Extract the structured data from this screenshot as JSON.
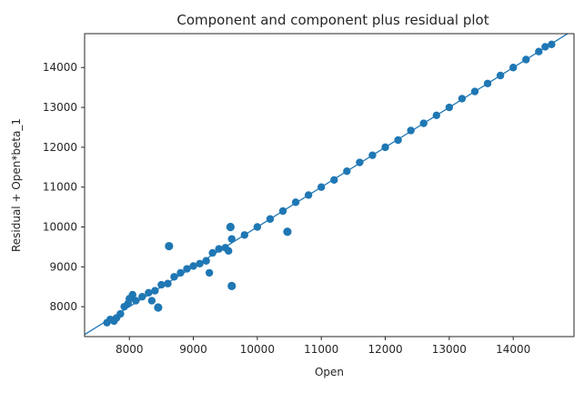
{
  "chart_data": {
    "type": "scatter",
    "title": "Component and component plus residual plot",
    "xlabel": "Open",
    "ylabel": "Residual + Open*beta_1",
    "xlim": [
      7300,
      14950
    ],
    "ylim": [
      7250,
      14850
    ],
    "xticks": [
      8000,
      9000,
      10000,
      11000,
      12000,
      13000,
      14000
    ],
    "yticks": [
      8000,
      9000,
      10000,
      11000,
      12000,
      13000,
      14000
    ],
    "grid": false,
    "marker_color": "#1f77b4",
    "fit_line": {
      "slope": 1,
      "intercept": 0,
      "color": "#1f77b4"
    },
    "series": [
      {
        "points": [
          [
            7650,
            7600
          ],
          [
            7700,
            7680
          ],
          [
            7760,
            7640
          ],
          [
            7800,
            7720
          ],
          [
            7860,
            7820
          ],
          [
            7920,
            8000
          ],
          [
            7980,
            8080
          ],
          [
            8000,
            8200
          ],
          [
            8050,
            8300
          ],
          [
            8100,
            8150
          ],
          [
            8200,
            8250
          ],
          [
            8300,
            8350
          ],
          [
            8350,
            8150
          ],
          [
            8400,
            8400
          ],
          [
            8450,
            7980
          ],
          [
            8500,
            8550
          ],
          [
            8600,
            8580
          ],
          [
            8700,
            8750
          ],
          [
            8800,
            8850
          ],
          [
            8900,
            8950
          ],
          [
            9000,
            9020
          ],
          [
            9100,
            9080
          ],
          [
            9200,
            9150
          ],
          [
            9250,
            8850
          ],
          [
            9300,
            9350
          ],
          [
            9400,
            9450
          ],
          [
            9500,
            9480
          ],
          [
            9550,
            9400
          ],
          [
            9600,
            9700
          ],
          [
            9800,
            9800
          ],
          [
            10000,
            10000
          ],
          [
            10200,
            10200
          ],
          [
            10400,
            10400
          ],
          [
            10600,
            10620
          ],
          [
            10800,
            10800
          ],
          [
            11000,
            11000
          ],
          [
            11200,
            11180
          ],
          [
            11400,
            11400
          ],
          [
            11600,
            11620
          ],
          [
            11800,
            11800
          ],
          [
            12000,
            12000
          ],
          [
            12200,
            12180
          ],
          [
            12400,
            12420
          ],
          [
            12600,
            12600
          ],
          [
            12800,
            12800
          ],
          [
            13000,
            13000
          ],
          [
            13200,
            13220
          ],
          [
            13400,
            13400
          ],
          [
            13600,
            13600
          ],
          [
            13800,
            13800
          ],
          [
            14000,
            14000
          ],
          [
            14200,
            14200
          ],
          [
            14400,
            14400
          ],
          [
            14500,
            14520
          ],
          [
            14600,
            14580
          ]
        ]
      }
    ],
    "outliers": [
      [
        8620,
        9520
      ],
      [
        9580,
        10000
      ],
      [
        9600,
        8520
      ],
      [
        10470,
        9880
      ],
      [
        8450,
        7980
      ]
    ]
  }
}
